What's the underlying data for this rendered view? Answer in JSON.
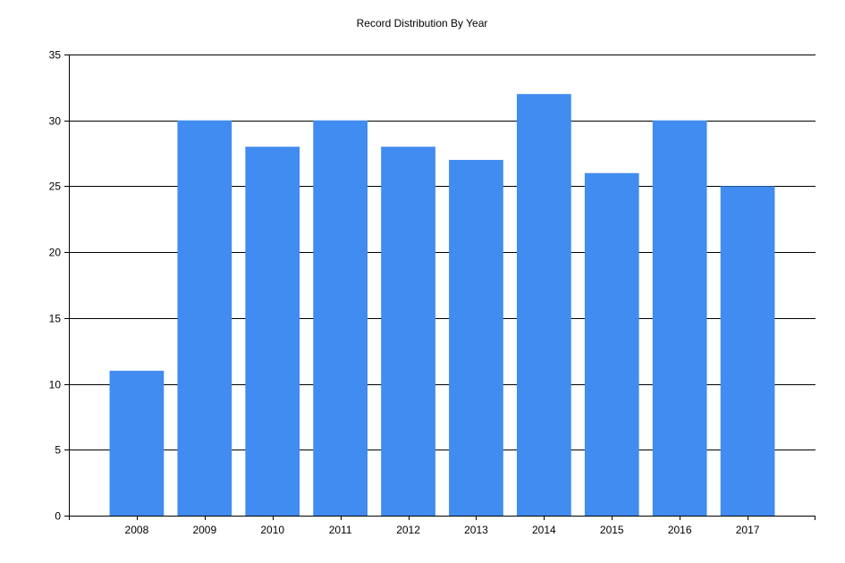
{
  "chart_data": {
    "type": "bar",
    "title": "Record Distribution By Year",
    "xlabel": "",
    "ylabel": "",
    "categories": [
      "2008",
      "2009",
      "2010",
      "2011",
      "2012",
      "2013",
      "2014",
      "2015",
      "2016",
      "2017"
    ],
    "values": [
      11,
      30,
      28,
      30,
      28,
      27,
      32,
      26,
      30,
      25
    ],
    "ylim": [
      0,
      35
    ],
    "yticks": [
      0,
      5,
      10,
      15,
      20,
      25,
      30,
      35
    ],
    "grid": true,
    "legend": "none",
    "bar_color": "#418CF0"
  }
}
